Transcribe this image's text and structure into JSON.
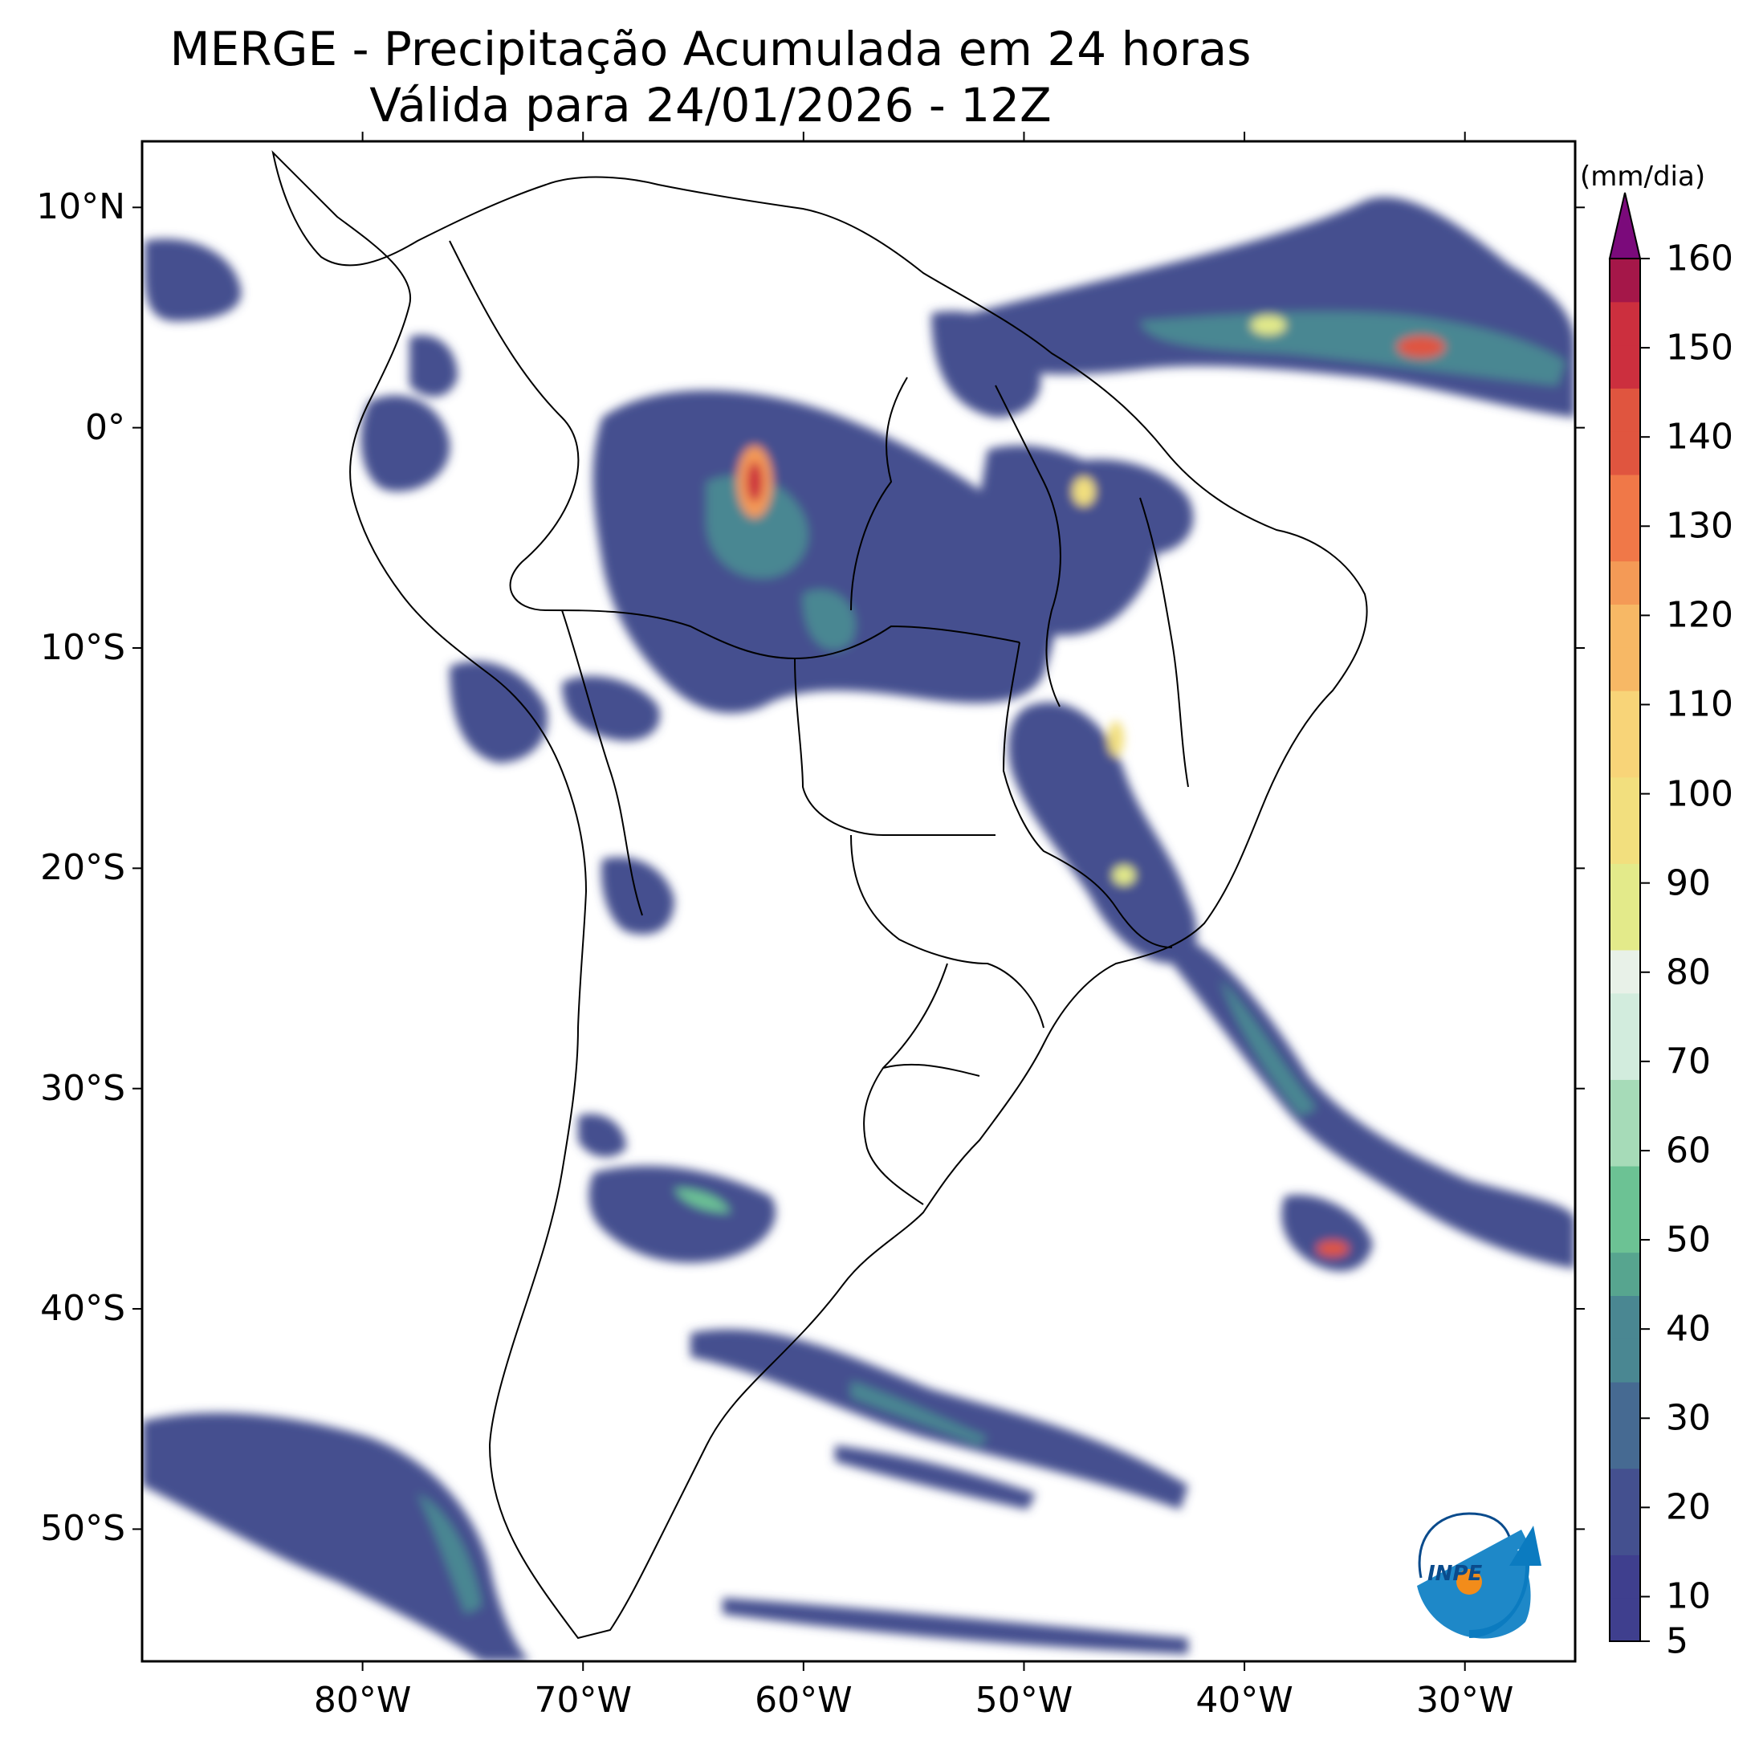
{
  "header": {
    "title_line1": "MERGE - Precipitação Acumulada em 24 horas",
    "title_line2": "Válida para 24/01/2026 - 12Z"
  },
  "map": {
    "lat_labels": [
      "10°N",
      "0°",
      "10°S",
      "20°S",
      "30°S",
      "40°S",
      "50°S"
    ],
    "lat_values": [
      10,
      0,
      -10,
      -20,
      -30,
      -40,
      -50
    ],
    "lon_labels": [
      "80°W",
      "70°W",
      "60°W",
      "50°W",
      "40°W",
      "30°W"
    ],
    "lon_values": [
      -80,
      -70,
      -60,
      -50,
      -40,
      -30
    ],
    "extent": {
      "lon_min": -90,
      "lon_max": -25,
      "lat_min": -56,
      "lat_max": 13
    }
  },
  "colorbar": {
    "units": "(mm/dia)",
    "tick_labels": [
      "5",
      "10",
      "20",
      "30",
      "40",
      "50",
      "60",
      "70",
      "80",
      "90",
      "100",
      "110",
      "120",
      "130",
      "140",
      "150",
      "160"
    ],
    "tick_values": [
      5,
      10,
      20,
      30,
      40,
      50,
      60,
      70,
      80,
      90,
      100,
      110,
      120,
      130,
      140,
      150,
      160
    ],
    "colors": [
      "#3f3f8e",
      "#44508f",
      "#466a92",
      "#4a8792",
      "#57a58f",
      "#6cc294",
      "#a6dbb8",
      "#d2ecdd",
      "#e8f1e8",
      "#e3ea8a",
      "#f2df7e",
      "#f8d478",
      "#f7b865",
      "#f49a56",
      "#f07848",
      "#e0553f",
      "#cc2f3e",
      "#a51749"
    ],
    "extend_color": "#7b0a7b"
  },
  "logo": {
    "text": "INPE"
  }
}
